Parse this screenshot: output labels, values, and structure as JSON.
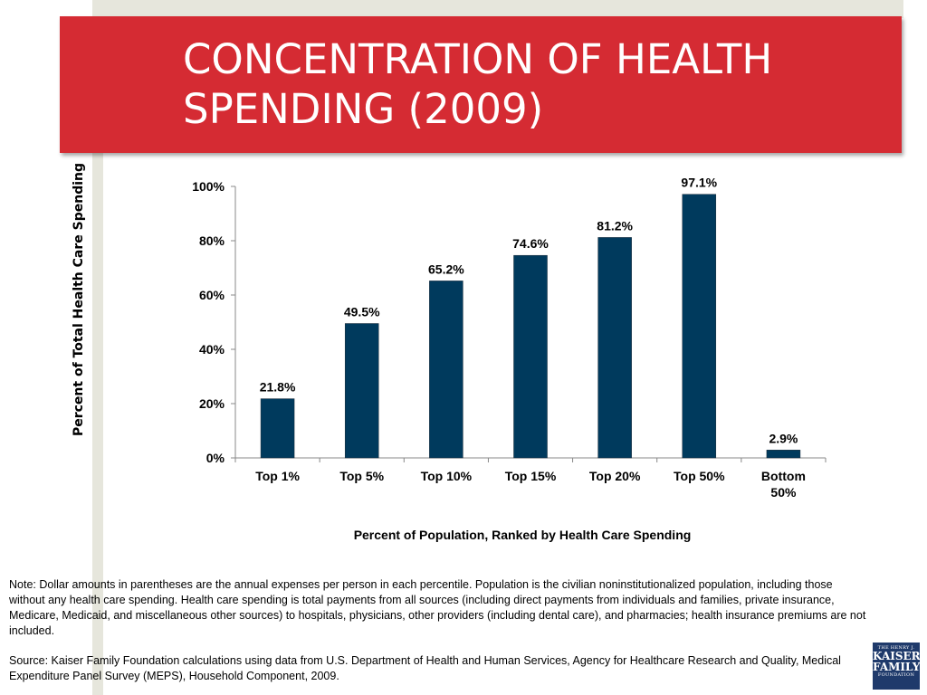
{
  "header": {
    "title": "CONCENTRATION OF HEALTH\nSPENDING  (2009)"
  },
  "chart_data": {
    "type": "bar",
    "categories": [
      "Top 1%",
      "Top 5%",
      "Top 10%",
      "Top 15%",
      "Top 20%",
      "Top 50%",
      "Bottom\n50%"
    ],
    "values": [
      21.8,
      49.5,
      65.2,
      74.6,
      81.2,
      97.1,
      2.9
    ],
    "data_labels": [
      "21.8%",
      "49.5%",
      "65.2%",
      "74.6%",
      "81.2%",
      "97.1%",
      "2.9%"
    ],
    "title": "",
    "xlabel": "Percent of Population, Ranked by Health Care Spending",
    "ylabel": "Percent of Total Health Care Spending",
    "ylim": [
      0,
      100
    ],
    "yticks": [
      0,
      20,
      40,
      60,
      80,
      100
    ],
    "ytick_labels": [
      "0%",
      "20%",
      "40%",
      "60%",
      "80%",
      "100%"
    ],
    "grid": false,
    "legend": "none",
    "bar_color": "#003a5d"
  },
  "footnotes": {
    "note": "Note: Dollar amounts in parentheses are the annual expenses per person in each percentile. Population is the civilian noninstitutionalized population, including those without any health care spending. Health care spending is total payments from all sources (including direct payments from individuals and families, private insurance, Medicare, Medicaid, and miscellaneous other sources) to hospitals, physicians, other providers (including dental care), and pharmacies; health insurance premiums are not included.",
    "source": "Source: Kaiser Family Foundation calculations using data from U.S. Department of Health and Human Services, Agency for Healthcare Research and Quality, Medical Expenditure Panel Survey (MEPS), Household Component, 2009."
  },
  "logo": {
    "line1": "THE HENRY J.",
    "line2": "KAISER",
    "line3": "FAMILY",
    "line4": "FOUNDATION"
  },
  "colors": {
    "banner": "#d52b33",
    "frame": "#e6e6dc",
    "logo_bg": "#1f3a6b"
  }
}
